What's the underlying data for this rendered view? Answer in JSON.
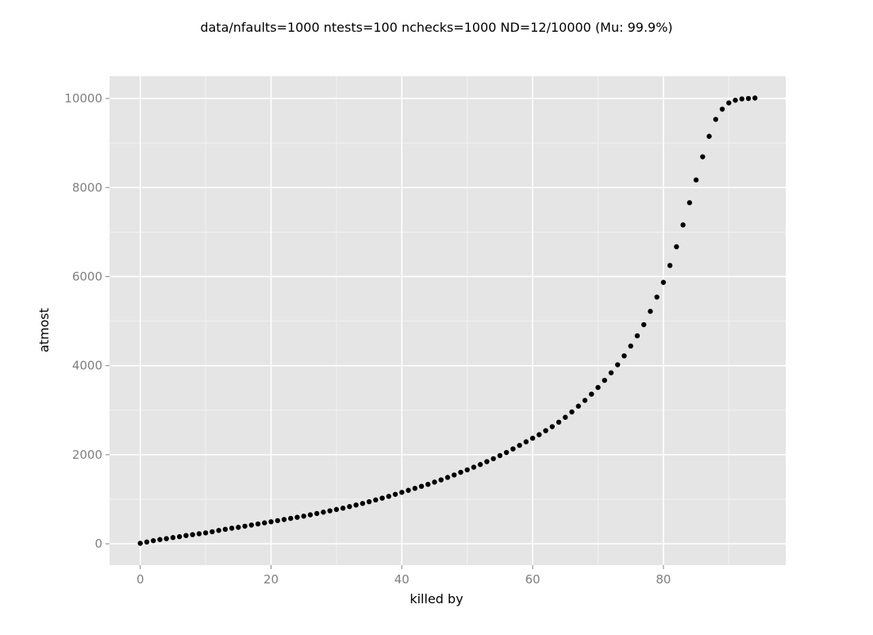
{
  "chart_data": {
    "type": "scatter",
    "title": "data/nfaults=1000 ntests=100 nchecks=1000  ND=12/10000 (Mu: 99.9%)",
    "xlabel": "killed by",
    "ylabel": "atmost",
    "xlim": [
      -4.7,
      98.7
    ],
    "ylim": [
      -480,
      10500
    ],
    "x_ticks": [
      0,
      20,
      40,
      60,
      80
    ],
    "y_ticks": [
      0,
      2000,
      4000,
      6000,
      8000,
      10000
    ],
    "x_tick_labels": [
      "0",
      "20",
      "40",
      "60",
      "80"
    ],
    "y_tick_labels": [
      "0",
      "2000",
      "4000",
      "6000",
      "8000",
      "10000"
    ],
    "x_minor_ticks": [
      10,
      30,
      50,
      70,
      90
    ],
    "y_minor_ticks": [
      1000,
      3000,
      5000,
      7000,
      9000
    ],
    "grid": true,
    "colors": {
      "panel": "#e5e5e5",
      "grid_major": "#ffffff",
      "grid_minor": "#f2f2f2",
      "point": "#000000"
    },
    "x": [
      0,
      1,
      2,
      3,
      4,
      5,
      6,
      7,
      8,
      9,
      10,
      11,
      12,
      13,
      14,
      15,
      16,
      17,
      18,
      19,
      20,
      21,
      22,
      23,
      24,
      25,
      26,
      27,
      28,
      29,
      30,
      31,
      32,
      33,
      34,
      35,
      36,
      37,
      38,
      39,
      40,
      41,
      42,
      43,
      44,
      45,
      46,
      47,
      48,
      49,
      50,
      51,
      52,
      53,
      54,
      55,
      56,
      57,
      58,
      59,
      60,
      61,
      62,
      63,
      64,
      65,
      66,
      67,
      68,
      69,
      70,
      71,
      72,
      73,
      74,
      75,
      76,
      77,
      78,
      79,
      80,
      81,
      82,
      83,
      84,
      85,
      86,
      87,
      88,
      89,
      90,
      91,
      92,
      93,
      94
    ],
    "y": [
      10,
      40,
      70,
      95,
      115,
      140,
      160,
      185,
      205,
      225,
      245,
      270,
      300,
      325,
      350,
      370,
      395,
      420,
      445,
      470,
      495,
      520,
      545,
      570,
      595,
      620,
      650,
      680,
      710,
      740,
      770,
      800,
      835,
      870,
      905,
      945,
      985,
      1025,
      1065,
      1110,
      1155,
      1200,
      1245,
      1290,
      1335,
      1385,
      1435,
      1490,
      1545,
      1605,
      1660,
      1720,
      1780,
      1845,
      1910,
      1980,
      2050,
      2130,
      2210,
      2290,
      2370,
      2450,
      2540,
      2630,
      2730,
      2840,
      2960,
      3090,
      3220,
      3360,
      3510,
      3670,
      3840,
      4020,
      4220,
      4440,
      4670,
      4920,
      5220,
      5540,
      5870,
      6250,
      6670,
      7160,
      7660,
      8170,
      8690,
      9150,
      9530,
      9760,
      9900,
      9960,
      9990,
      10000,
      10010
    ]
  }
}
